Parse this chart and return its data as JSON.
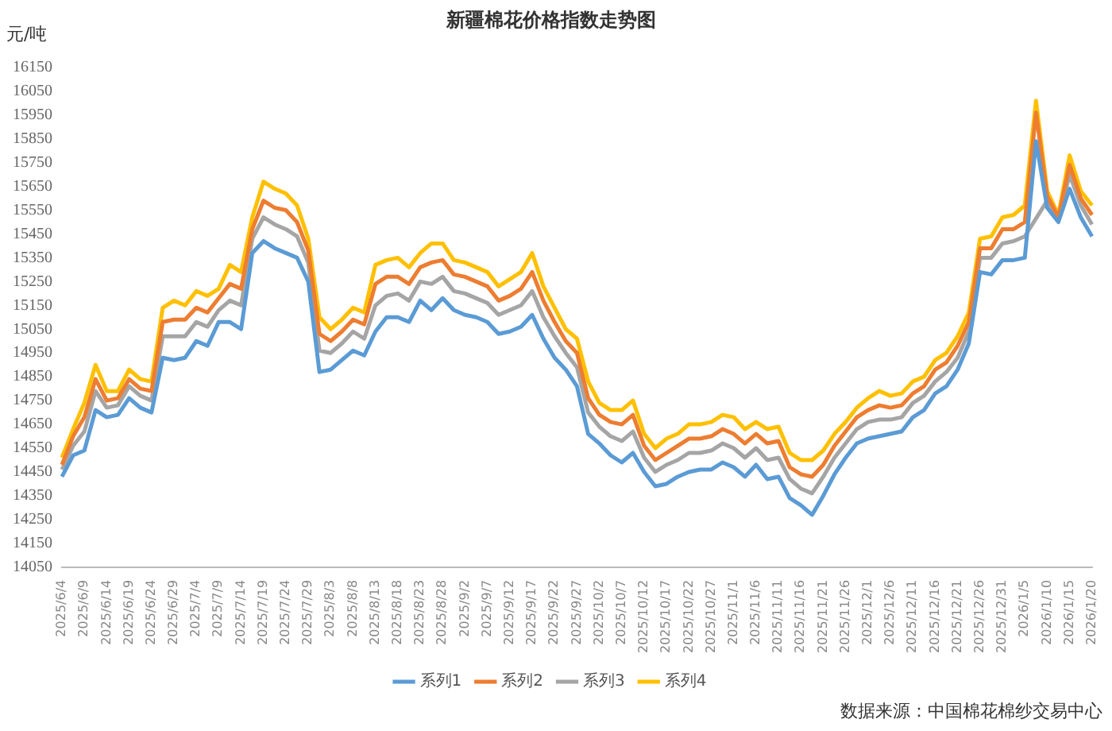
{
  "chart_data": {
    "type": "line",
    "title": "新疆棉花价格指数走势图",
    "ylabel": "元/吨",
    "annotations": [
      "数据来源：中国棉花棉纱交易中心"
    ],
    "categories": [
      "2025/6/4",
      null,
      "2025/6/9",
      null,
      "2025/6/14",
      null,
      "2025/6/19",
      null,
      "2025/6/24",
      null,
      "2025/6/29",
      null,
      "2025/7/4",
      null,
      "2025/7/9",
      null,
      "2025/7/14",
      null,
      "2025/7/19",
      null,
      "2025/7/24",
      null,
      "2025/7/29",
      null,
      "2025/8/3",
      null,
      "2025/8/8",
      null,
      "2025/8/13",
      null,
      "2025/8/18",
      null,
      "2025/8/23",
      null,
      "2025/8/28",
      null,
      "2025/9/2",
      null,
      "2025/9/7",
      null,
      "2025/9/12",
      null,
      "2025/9/17",
      null,
      "2025/9/22",
      null,
      "2025/9/27",
      null,
      "2025/10/2",
      null,
      "2025/10/7",
      null,
      "2025/10/12",
      null,
      "2025/10/17",
      null,
      "2025/10/22",
      null,
      "2025/10/27",
      null,
      "2025/11/1",
      null,
      "2025/11/6",
      null,
      "2025/11/11",
      null,
      "2025/11/16",
      null,
      "2025/11/21",
      null,
      "2025/11/26",
      null,
      "2025/12/1",
      null,
      "2025/12/6",
      null,
      "2025/12/11",
      null,
      "2025/12/16",
      null,
      "2025/12/21",
      null,
      "2025/12/26",
      null,
      "2025/12/31",
      null,
      "2026/1/5",
      null,
      "2026/1/10",
      null,
      "2026/1/15",
      null,
      "2026/1/20"
    ],
    "series": [
      {
        "name": "系列1",
        "color": "#5b9bd5",
        "values": [
          14430,
          14520,
          14540,
          14710,
          14680,
          14690,
          14760,
          14720,
          14700,
          14930,
          14920,
          14930,
          15000,
          14980,
          15080,
          15080,
          15050,
          15370,
          15420,
          15390,
          15370,
          15350,
          15250,
          14870,
          14880,
          14920,
          14960,
          14940,
          15040,
          15100,
          15100,
          15080,
          15170,
          15130,
          15180,
          15130,
          15110,
          15100,
          15080,
          15030,
          15040,
          15060,
          15110,
          15010,
          14930,
          14880,
          14810,
          14610,
          14570,
          14520,
          14490,
          14530,
          14450,
          14390,
          14400,
          14430,
          14450,
          14460,
          14460,
          14490,
          14470,
          14430,
          14480,
          14420,
          14430,
          14340,
          14310,
          14270,
          14350,
          14440,
          14510,
          14570,
          14590,
          14600,
          14610,
          14620,
          14680,
          14710,
          14780,
          14810,
          14880,
          14990,
          15290,
          15280,
          15340,
          15340,
          15350,
          15840,
          15560,
          15500,
          15640,
          15520,
          15440
        ]
      },
      {
        "name": "系列2",
        "color": "#ed7d31",
        "values": [
          14480,
          14600,
          14680,
          14840,
          14750,
          14760,
          14840,
          14800,
          14790,
          15080,
          15090,
          15090,
          15140,
          15120,
          15180,
          15240,
          15220,
          15470,
          15590,
          15560,
          15550,
          15500,
          15380,
          15030,
          15000,
          15040,
          15090,
          15070,
          15240,
          15270,
          15270,
          15240,
          15310,
          15330,
          15340,
          15280,
          15270,
          15250,
          15230,
          15170,
          15190,
          15220,
          15290,
          15170,
          15080,
          15000,
          14950,
          14760,
          14690,
          14660,
          14650,
          14690,
          14560,
          14500,
          14530,
          14560,
          14590,
          14590,
          14600,
          14630,
          14610,
          14570,
          14610,
          14570,
          14580,
          14470,
          14440,
          14430,
          14480,
          14560,
          14620,
          14680,
          14710,
          14730,
          14720,
          14730,
          14780,
          14810,
          14880,
          14910,
          14980,
          15080,
          15390,
          15390,
          15470,
          15470,
          15500,
          15960,
          15610,
          15520,
          15740,
          15600,
          15530
        ]
      },
      {
        "name": "系列3",
        "color": "#a5a5a5",
        "values": [
          14460,
          14560,
          14620,
          14790,
          14720,
          14730,
          14810,
          14770,
          14750,
          15020,
          15020,
          15020,
          15080,
          15060,
          15130,
          15170,
          15150,
          15430,
          15520,
          15490,
          15470,
          15440,
          15330,
          14960,
          14950,
          14990,
          15040,
          15010,
          15150,
          15190,
          15200,
          15170,
          15250,
          15240,
          15270,
          15210,
          15200,
          15180,
          15160,
          15110,
          15130,
          15150,
          15210,
          15100,
          15020,
          14950,
          14890,
          14700,
          14640,
          14600,
          14580,
          14620,
          14510,
          14450,
          14480,
          14500,
          14530,
          14530,
          14540,
          14570,
          14550,
          14510,
          14550,
          14500,
          14510,
          14420,
          14380,
          14360,
          14430,
          14510,
          14570,
          14630,
          14660,
          14670,
          14670,
          14680,
          14740,
          14770,
          14830,
          14870,
          14930,
          15040,
          15350,
          15350,
          15410,
          15420,
          15440,
          null,
          15590,
          15510,
          15700,
          15570,
          15490
        ]
      },
      {
        "name": "系列4",
        "color": "#ffc000",
        "values": [
          14510,
          14630,
          14740,
          14900,
          14790,
          14790,
          14880,
          14840,
          14830,
          15140,
          15170,
          15150,
          15210,
          15190,
          15220,
          15320,
          15290,
          15520,
          15670,
          15640,
          15620,
          15570,
          15430,
          15100,
          15050,
          15090,
          15140,
          15120,
          15320,
          15340,
          15350,
          15310,
          15370,
          15410,
          15410,
          15340,
          15330,
          15310,
          15290,
          15230,
          15260,
          15290,
          15370,
          15230,
          15140,
          15050,
          15010,
          14830,
          14740,
          14710,
          14710,
          14750,
          14610,
          14550,
          14590,
          14610,
          14650,
          14650,
          14660,
          14690,
          14680,
          14630,
          14660,
          14630,
          14640,
          14530,
          14500,
          14500,
          14540,
          14610,
          14660,
          14720,
          14760,
          14790,
          14770,
          14780,
          14830,
          14850,
          14920,
          14950,
          15020,
          15120,
          15430,
          15440,
          15520,
          15530,
          15570,
          16010,
          15630,
          15530,
          15780,
          15630,
          15570
        ]
      }
    ],
    "ylim": [
      14050,
      16150
    ],
    "yticks": [
      14050,
      14150,
      14250,
      14350,
      14450,
      14550,
      14650,
      14750,
      14850,
      14950,
      15050,
      15150,
      15250,
      15350,
      15450,
      15550,
      15650,
      15750,
      15850,
      15950,
      16050,
      16150
    ],
    "grid": false,
    "legend": "bottom"
  }
}
